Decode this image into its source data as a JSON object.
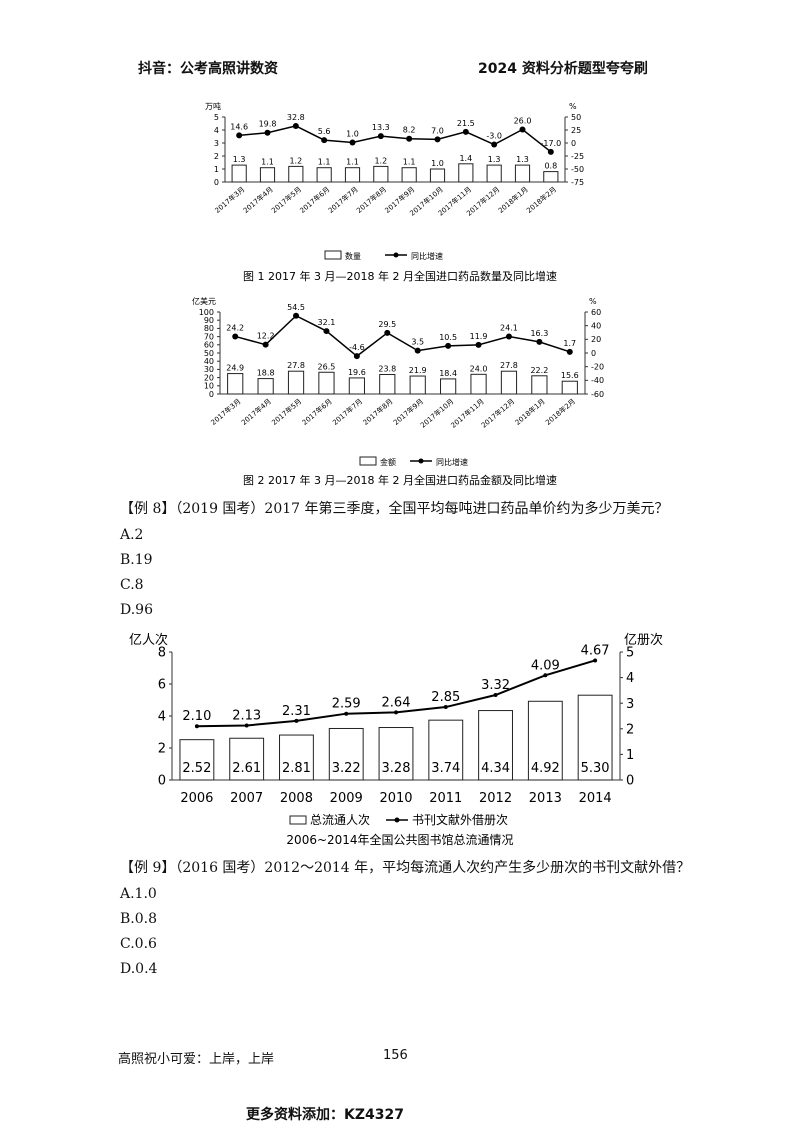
{
  "header": {
    "left": "抖音：公考高照讲数资",
    "right": "2024 资料分析题型夸夸刷"
  },
  "chart_data": [
    {
      "type": "bar",
      "title": "图 1  2017 年 3 月—2018 年 2 月全国进口药品数量及同比增速",
      "ylabel_left": "万吨",
      "ylabel_right": "%",
      "categories": [
        "2017年3月",
        "2017年4月",
        "2017年5月",
        "2017年6月",
        "2017年7月",
        "2017年8月",
        "2017年9月",
        "2017年10月",
        "2017年11月",
        "2017年12月",
        "2018年1月",
        "2018年2月"
      ],
      "ylim_left": [
        0,
        5
      ],
      "yticks_left": [
        "0",
        "1",
        "2",
        "3",
        "4",
        "5"
      ],
      "ylim_right": [
        -75,
        50
      ],
      "yticks_right": [
        "-75",
        "-50",
        "-25",
        "0",
        "25",
        "50"
      ],
      "series": [
        {
          "name": "数量",
          "type": "bar",
          "values": [
            1.3,
            1.1,
            1.2,
            1.1,
            1.1,
            1.2,
            1.1,
            1.0,
            1.4,
            1.3,
            1.3,
            0.8
          ]
        },
        {
          "name": "同比增速",
          "type": "line",
          "values": [
            14.6,
            19.8,
            32.8,
            5.6,
            1.0,
            13.3,
            8.2,
            7.0,
            21.5,
            -3.0,
            26.0,
            -17.0
          ]
        }
      ]
    },
    {
      "type": "bar",
      "title": "图 2  2017 年 3 月—2018 年 2 月全国进口药品金额及同比增速",
      "ylabel_left": "亿美元",
      "ylabel_right": "%",
      "categories": [
        "2017年3月",
        "2017年4月",
        "2017年5月",
        "2017年6月",
        "2017年7月",
        "2017年8月",
        "2017年9月",
        "2017年10月",
        "2017年11月",
        "2017年12月",
        "2018年1月",
        "2018年2月"
      ],
      "ylim_left": [
        0,
        100
      ],
      "yticks_left": [
        "0",
        "10",
        "20",
        "30",
        "40",
        "50",
        "60",
        "70",
        "80",
        "90",
        "100"
      ],
      "ylim_right": [
        -60,
        60
      ],
      "yticks_right": [
        "-60",
        "-40",
        "-20",
        "0",
        "20",
        "40",
        "60"
      ],
      "series": [
        {
          "name": "金额",
          "type": "bar",
          "values": [
            24.9,
            18.8,
            27.8,
            26.5,
            19.6,
            23.8,
            21.9,
            18.4,
            24.0,
            27.8,
            22.2,
            15.6
          ]
        },
        {
          "name": "同比增速",
          "type": "line",
          "values": [
            24.2,
            12.2,
            54.5,
            32.1,
            -4.6,
            29.5,
            3.5,
            10.5,
            11.9,
            24.1,
            16.3,
            1.7
          ]
        }
      ]
    },
    {
      "type": "bar",
      "title": "2006~2014年全国公共图书馆总流通情况",
      "ylabel_left": "亿人次",
      "ylabel_right": "亿册次",
      "categories": [
        "2006",
        "2007",
        "2008",
        "2009",
        "2010",
        "2011",
        "2012",
        "2013",
        "2014"
      ],
      "ylim_left": [
        0,
        8
      ],
      "yticks_left": [
        "0",
        "2",
        "4",
        "6",
        "8"
      ],
      "ylim_right": [
        0,
        5
      ],
      "yticks_right": [
        "0",
        "1",
        "2",
        "3",
        "4",
        "5"
      ],
      "series": [
        {
          "name": "总流通人次",
          "type": "bar",
          "values": [
            2.52,
            2.61,
            2.81,
            3.22,
            3.28,
            3.74,
            4.34,
            4.92,
            5.3
          ]
        },
        {
          "name": "书刊文献外借册次",
          "type": "line",
          "values": [
            2.1,
            2.13,
            2.31,
            2.59,
            2.64,
            2.85,
            3.32,
            4.09,
            4.67
          ]
        }
      ]
    }
  ],
  "q8": {
    "stem": "【例 8】（2019 国考）2017 年第三季度，全国平均每吨进口药品单价约为多少万美元？",
    "options": [
      "A.2",
      "B.19",
      "C.8",
      "D.96"
    ]
  },
  "q9": {
    "stem": "【例 9】（2016 国考）2012～2014 年，平均每流通人次约产生多少册次的书刊文献外借？",
    "options": [
      "A.1.0",
      "B.0.8",
      "C.0.6",
      "D.0.4"
    ]
  },
  "footer": {
    "left": "高照祝小可爱：上岸，上岸",
    "page": "156",
    "bottom": "更多资料添加：KZ4327"
  }
}
